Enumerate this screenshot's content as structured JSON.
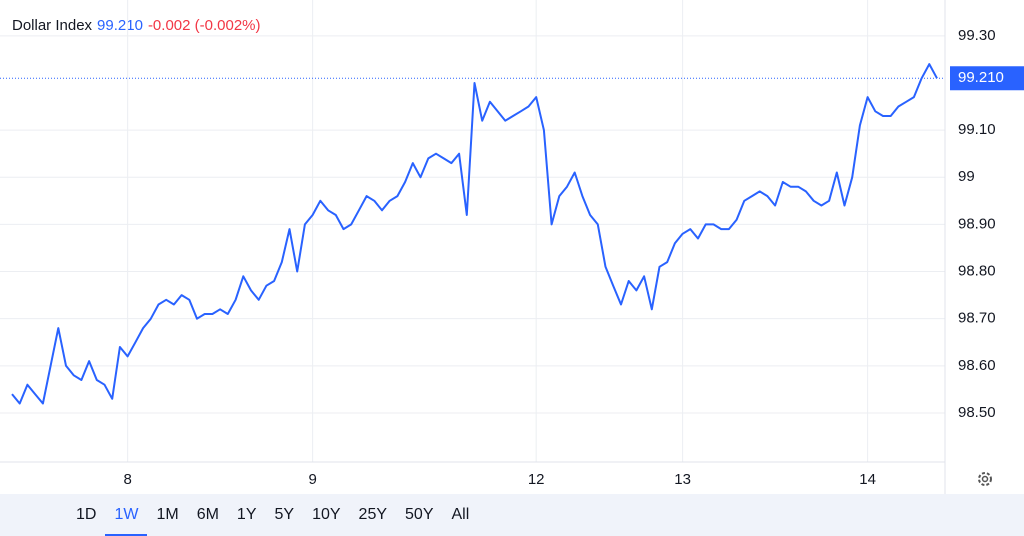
{
  "chart_data": {
    "type": "line",
    "title": "Dollar Index",
    "last_price": {
      "value": 99.21,
      "label": "99.210"
    },
    "change_label": "-0.002 (-0.002%)",
    "color": "#2962ff",
    "grid": true,
    "xlim": [
      -1.56,
      121.04
    ],
    "xticks": [
      {
        "value": 15,
        "label": "8"
      },
      {
        "value": 39,
        "label": "9"
      },
      {
        "value": 68,
        "label": "12"
      },
      {
        "value": 87,
        "label": "13"
      },
      {
        "value": 111,
        "label": "14"
      }
    ],
    "ylim": [
      98.396,
      99.376
    ],
    "yticks": [
      {
        "value": 98.5,
        "label": "98.50"
      },
      {
        "value": 98.6,
        "label": "98.60"
      },
      {
        "value": 98.7,
        "label": "98.70"
      },
      {
        "value": 98.8,
        "label": "98.80"
      },
      {
        "value": 98.9,
        "label": "98.90"
      },
      99,
      {
        "value": 99.1,
        "label": "99.10"
      },
      {
        "value": 99.3,
        "label": "99.30"
      }
    ],
    "x": [
      0,
      1,
      2,
      3,
      4,
      5,
      6,
      7,
      8,
      9,
      10,
      11,
      12,
      13,
      14,
      15,
      16,
      17,
      18,
      19,
      20,
      21,
      22,
      23,
      24,
      25,
      26,
      27,
      28,
      29,
      30,
      31,
      32,
      33,
      34,
      35,
      36,
      37,
      38,
      39,
      40,
      41,
      42,
      43,
      44,
      45,
      46,
      47,
      48,
      49,
      50,
      51,
      52,
      53,
      54,
      55,
      56,
      57,
      58,
      59,
      60,
      61,
      62,
      63,
      64,
      65,
      66,
      67,
      68,
      69,
      70,
      71,
      72,
      73,
      74,
      75,
      76,
      77,
      78,
      79,
      80,
      81,
      82,
      83,
      84,
      85,
      86,
      87,
      88,
      89,
      90,
      91,
      92,
      93,
      94,
      95,
      96,
      97,
      98,
      99,
      100,
      101,
      102,
      103,
      104,
      105,
      106,
      107,
      108,
      109,
      110,
      111,
      112,
      113,
      114,
      115,
      116,
      117,
      118,
      119,
      120
    ],
    "values": [
      98.54,
      98.52,
      98.56,
      98.54,
      98.52,
      98.6,
      98.68,
      98.6,
      98.58,
      98.57,
      98.61,
      98.57,
      98.56,
      98.53,
      98.64,
      98.62,
      98.65,
      98.68,
      98.7,
      98.73,
      98.74,
      98.73,
      98.75,
      98.74,
      98.7,
      98.71,
      98.71,
      98.72,
      98.71,
      98.74,
      98.79,
      98.76,
      98.74,
      98.77,
      98.78,
      98.82,
      98.89,
      98.8,
      98.9,
      98.92,
      98.95,
      98.93,
      98.92,
      98.89,
      98.9,
      98.93,
      98.96,
      98.95,
      98.93,
      98.95,
      98.96,
      98.99,
      99.03,
      99.0,
      99.04,
      99.05,
      99.04,
      99.03,
      99.05,
      98.92,
      99.2,
      99.12,
      99.16,
      99.14,
      99.12,
      99.13,
      99.14,
      99.15,
      99.17,
      99.1,
      98.9,
      98.96,
      98.98,
      99.01,
      98.96,
      98.92,
      98.9,
      98.81,
      98.77,
      98.73,
      98.78,
      98.76,
      98.79,
      98.72,
      98.81,
      98.82,
      98.86,
      98.88,
      98.89,
      98.87,
      98.9,
      98.9,
      98.89,
      98.89,
      98.91,
      98.95,
      98.96,
      98.97,
      98.96,
      98.94,
      98.99,
      98.98,
      98.98,
      98.97,
      98.95,
      98.94,
      98.95,
      99.01,
      98.94,
      99.0,
      99.11,
      99.17,
      99.14,
      99.13,
      99.13,
      99.15,
      99.16,
      99.17,
      99.21,
      99.24,
      99.21
    ],
    "ranges": [
      "1D",
      "1W",
      "1M",
      "6M",
      "1Y",
      "5Y",
      "10Y",
      "25Y",
      "50Y",
      "All"
    ],
    "selected_range_index": 1
  }
}
